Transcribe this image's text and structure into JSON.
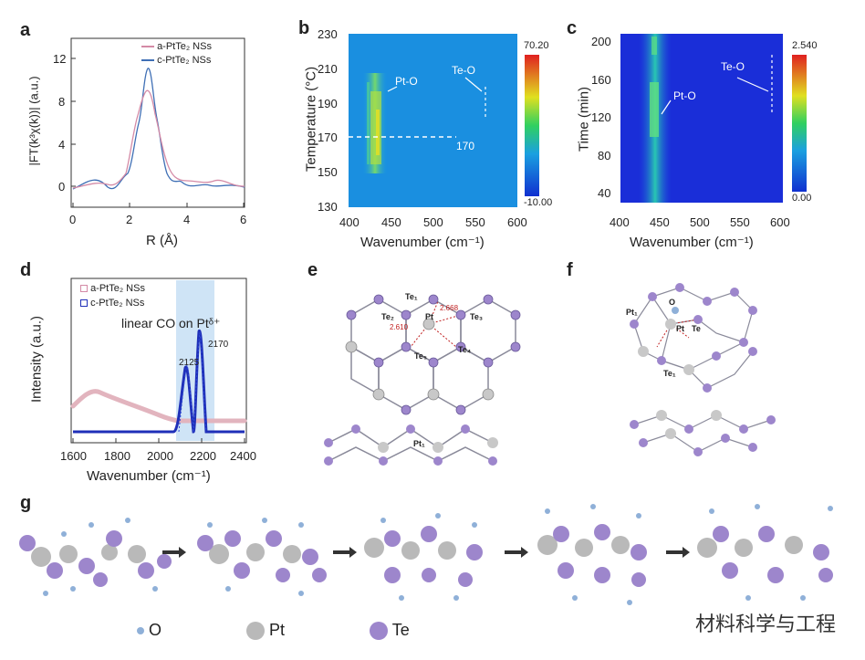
{
  "panels": {
    "a": "a",
    "b": "b",
    "c": "c",
    "d": "d",
    "e": "e",
    "f": "f",
    "g": "g"
  },
  "panel_a": {
    "legend": [
      "a-PtTe₂ NSs",
      "c-PtTe₂ NSs"
    ],
    "ylabel": "|FT(k³χ(k))| (a.u.)",
    "xlabel": "R (Å)",
    "xticks": [
      "0",
      "2",
      "4",
      "6"
    ],
    "yticks": [
      "0",
      "4",
      "8",
      "12"
    ],
    "colors": {
      "a": "#d48aa6",
      "c": "#3f6fb5"
    }
  },
  "panel_b": {
    "ylabel": "Temperature (°C)",
    "xlabel": "Wavenumber (cm⁻¹)",
    "xticks": [
      "400",
      "450",
      "500",
      "550",
      "600"
    ],
    "yticks": [
      "230",
      "210",
      "190",
      "170",
      "150",
      "130"
    ],
    "label_pto": "Pt-O",
    "label_teo": "Te-O",
    "dashed_label": "170",
    "cbar_max": "70.20",
    "cbar_min": "-10.00"
  },
  "panel_c": {
    "ylabel": "Time (min)",
    "xlabel": "Wavenumber (cm⁻¹)",
    "xticks": [
      "400",
      "450",
      "500",
      "550",
      "600"
    ],
    "yticks": [
      "200",
      "160",
      "120",
      "80",
      "40"
    ],
    "label_pto": "Pt-O",
    "label_teo": "Te-O",
    "cbar_max": "2.540",
    "cbar_min": "0.00"
  },
  "panel_d": {
    "legend": [
      "a-PtTe₂ NSs",
      "c-PtTe₂ NSs"
    ],
    "annotation": "linear CO on Ptᵟ⁺",
    "peak1": "2125",
    "peak2": "2170",
    "ylabel": "Intensity (a.u.)",
    "xlabel": "Wavenumber (cm⁻¹)",
    "xticks": [
      "1600",
      "1800",
      "2000",
      "2200",
      "2400"
    ],
    "colors": {
      "a": "#e2b4be",
      "c": "#1f2fb8",
      "band": "#cfe4f6"
    }
  },
  "panel_e": {
    "labels": [
      "Te₁",
      "Te₂",
      "Pt",
      "Te₃",
      "Te₄",
      "Te₅",
      "Pt₁"
    ],
    "bond_values": [
      "2.668",
      "2.610"
    ]
  },
  "panel_f": {
    "labels": [
      "Pt₁",
      "O",
      "Pt",
      "Te",
      "Te₁"
    ]
  },
  "panel_g": {
    "key": [
      {
        "label": "O",
        "color": "#8fb0d8"
      },
      {
        "label": "Pt",
        "color": "#b9b9b9"
      },
      {
        "label": "Te",
        "color": "#9d86cc"
      }
    ]
  },
  "watermark": "材料科学与工程"
}
